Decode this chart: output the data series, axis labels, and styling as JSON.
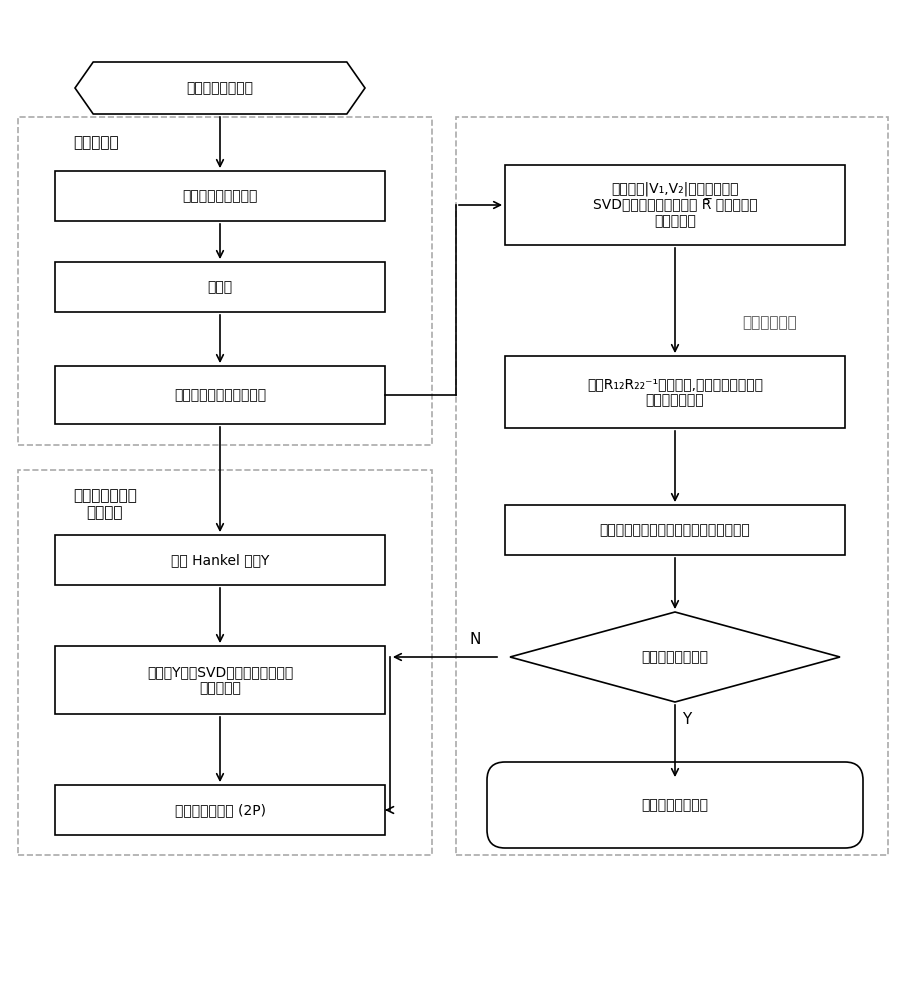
{
  "fig_width": 9.01,
  "fig_height": 10.0,
  "bg_color": "#ffffff",
  "left_group_label1": "信号预处理",
  "left_group_label2": "奇异值相对变化\n率法定阶",
  "right_group_label": "低频振荡辨识",
  "top_hexagon_text": "电网低频振荡信号",
  "box1_text": "低通滤波器处理信号",
  "box2_text": "去均值",
  "box3_text": "构造四阶混合平均累积量",
  "box4_text": "构造 Hankel 矩阵Y",
  "box5_text": "对矩阵Y进行SVD分解并定义奇异值\n相对变化率",
  "box6_text": "确定系统的阶数 (2P)",
  "right_box1_line1": "构造矩阵|V₁,V₂|，对矩阵进行",
  "right_box1_line2": "SVD分解得到右特征向量 R̅ ，并对右特",
  "right_box1_line3": "征向量分块",
  "right_box2_line1": "计算R₁₂R₂₂⁻¹的特征值,求出信号对应的频",
  "right_box2_line2": "率以及衰减系数",
  "right_box3_text": "运用最小二乘法求出信号的幅值和初相角",
  "diamond_text": "是否满足拟合要求",
  "diamond_yes": "Y",
  "diamond_no": "N",
  "output_box_text": "输出低频振荡信息"
}
